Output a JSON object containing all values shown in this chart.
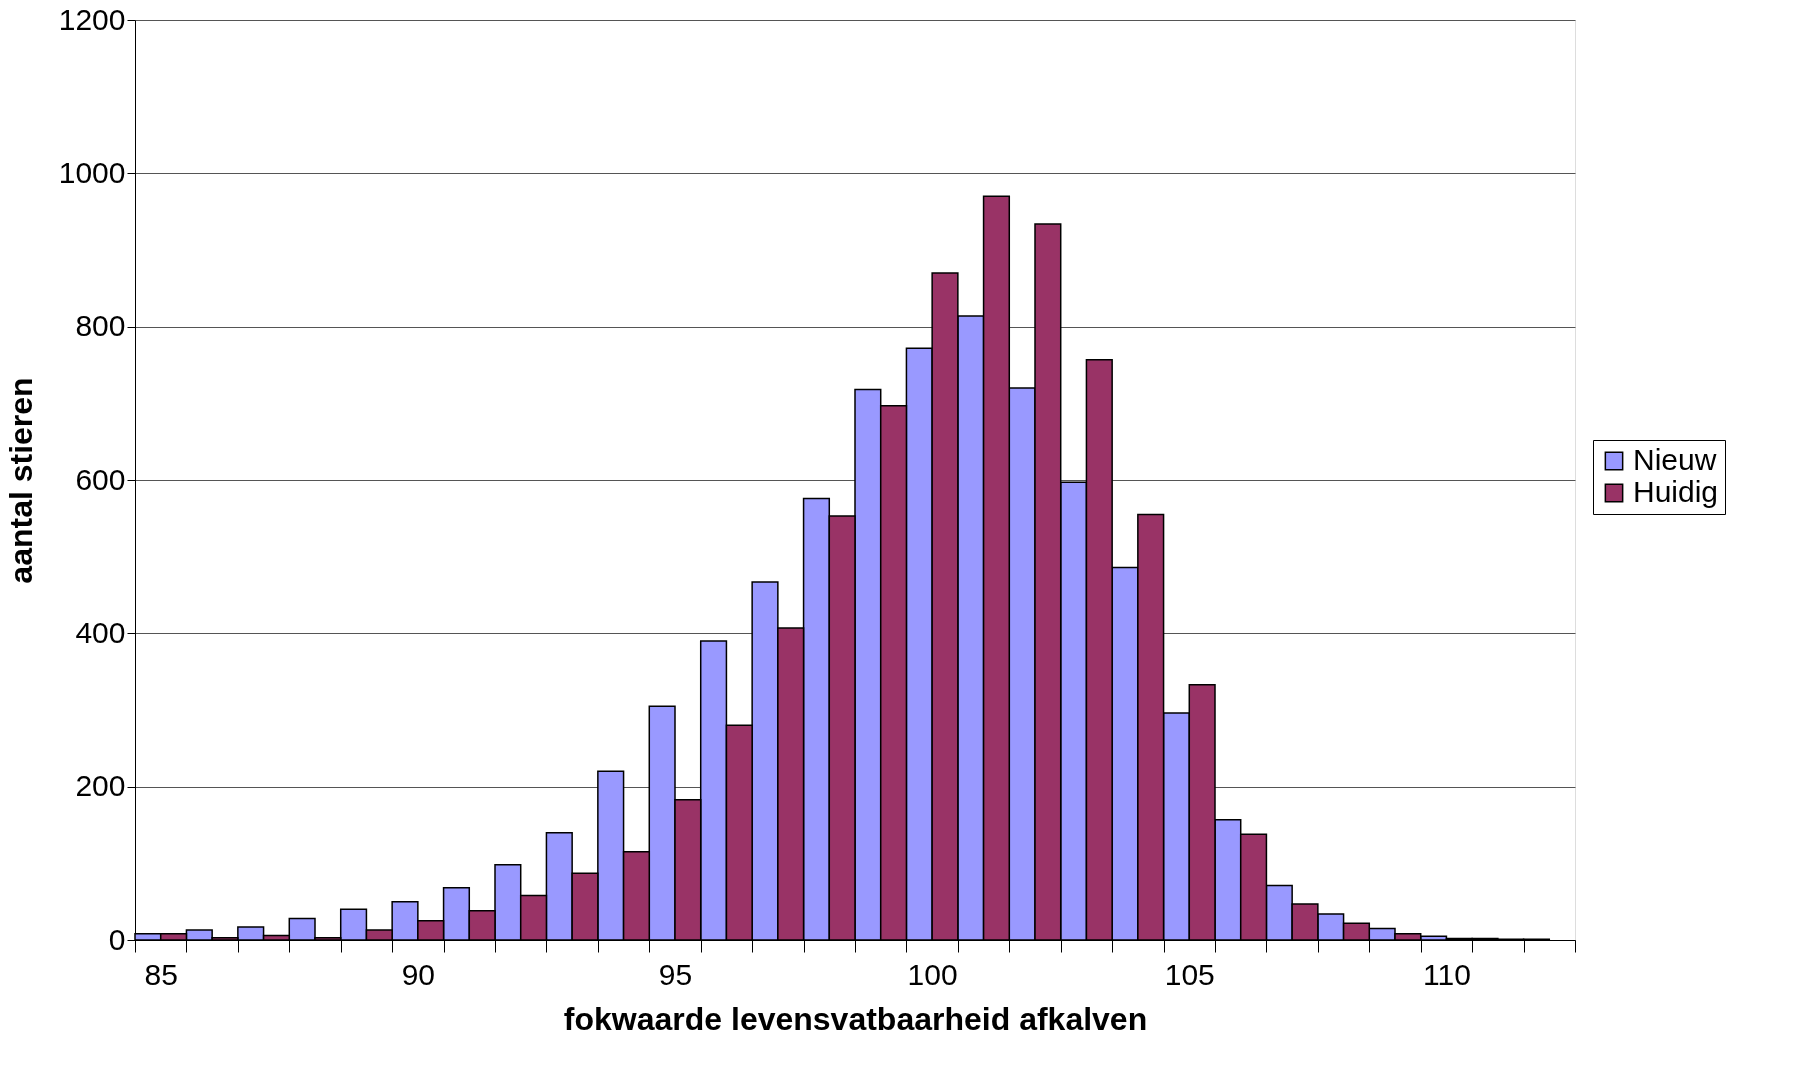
{
  "chart_data": {
    "type": "bar",
    "xlabel": "fokwaarde levensvatbaarheid afkalven",
    "ylabel": "aantal stieren",
    "categories": [
      "85",
      null,
      null,
      null,
      null,
      "90",
      null,
      null,
      null,
      null,
      "95",
      null,
      null,
      null,
      null,
      "100",
      null,
      null,
      null,
      null,
      "105",
      null,
      null,
      null,
      null,
      "110",
      null,
      null
    ],
    "series": [
      {
        "name": "Nieuw",
        "color": "#9999ff",
        "values": [
          8,
          13,
          17,
          28,
          40,
          50,
          68,
          98,
          140,
          220,
          305,
          390,
          467,
          576,
          718,
          772,
          814,
          720,
          597,
          486,
          296,
          157,
          71,
          34,
          15,
          5,
          2,
          1
        ]
      },
      {
        "name": "Huidig",
        "color": "#993366",
        "values": [
          8,
          3,
          6,
          3,
          13,
          25,
          38,
          58,
          87,
          115,
          183,
          280,
          407,
          553,
          697,
          870,
          970,
          934,
          757,
          555,
          333,
          138,
          47,
          22,
          8,
          2,
          1,
          null
        ]
      }
    ],
    "ylim": [
      0,
      1200
    ],
    "yticks": [
      0,
      200,
      400,
      600,
      800,
      1000,
      1200
    ],
    "grid": "y",
    "legend": "right"
  }
}
